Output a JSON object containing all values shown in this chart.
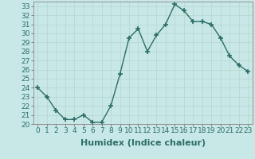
{
  "xlabel": "Humidex (Indice chaleur)",
  "ylabel": "",
  "x": [
    0,
    1,
    2,
    3,
    4,
    5,
    6,
    7,
    8,
    9,
    10,
    11,
    12,
    13,
    14,
    15,
    16,
    17,
    18,
    19,
    20,
    21,
    22,
    23
  ],
  "y": [
    24,
    23,
    21.5,
    20.5,
    20.5,
    21,
    20.2,
    20.2,
    22,
    25.5,
    29.5,
    30.5,
    28,
    29.8,
    31,
    33.2,
    32.5,
    31.3,
    31.3,
    31,
    29.5,
    27.5,
    26.5,
    25.8
  ],
  "line_color": "#2d6e65",
  "marker": "+",
  "marker_size": 5,
  "bg_color": "#c8e8e8",
  "grid_color": "#b8d8d0",
  "ylim": [
    20,
    33.5
  ],
  "yticks": [
    20,
    21,
    22,
    23,
    24,
    25,
    26,
    27,
    28,
    29,
    30,
    31,
    32,
    33
  ],
  "xlim": [
    -0.5,
    23.5
  ],
  "tick_fontsize": 6.5,
  "label_fontsize": 8
}
